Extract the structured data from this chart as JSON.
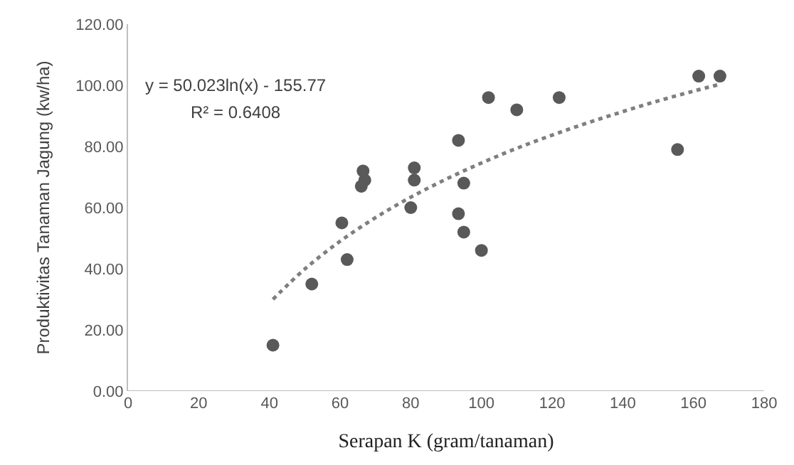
{
  "chart_data": {
    "type": "scatter",
    "xlabel": "Serapan K (gram/tanaman)",
    "ylabel": "Produktivitas Tanaman Jagung (kw/ha)",
    "xlim": [
      0,
      180
    ],
    "xticks": [
      0,
      20,
      40,
      60,
      80,
      100,
      120,
      140,
      160,
      180
    ],
    "ylim": [
      0,
      120
    ],
    "yticks": [
      {
        "value": 0,
        "label": "0.00"
      },
      {
        "value": 20,
        "label": "20.00"
      },
      {
        "value": 40,
        "label": "40.00"
      },
      {
        "value": 60,
        "label": "60.00"
      },
      {
        "value": 80,
        "label": "80.00"
      },
      {
        "value": 100,
        "label": "100.00"
      },
      {
        "value": 120,
        "label": "120.00"
      }
    ],
    "annotations": [
      "y = 50.023ln(x) - 155.77",
      "R² = 0.6408"
    ],
    "series": [
      {
        "color": "#595959",
        "marker": "circle",
        "x": [
          41,
          52,
          60.5,
          62,
          66.5,
          67,
          66,
          81,
          81,
          80,
          102,
          110,
          122,
          93.5,
          95,
          93.5,
          95,
          100,
          155.5,
          161.5,
          167.5
        ],
        "values": [
          15,
          35,
          55,
          43,
          72,
          69,
          67,
          73,
          69,
          60,
          96,
          92,
          96,
          82,
          68,
          58,
          52,
          46,
          79,
          103,
          103
        ]
      },
      {
        "type": "line",
        "color": "#7f7f7f",
        "marker": "none",
        "line_style": "dotted",
        "x": [
          41,
          50,
          60,
          70,
          80,
          90,
          100,
          110,
          120,
          130,
          140,
          150,
          160,
          167
        ],
        "values": [
          30.0,
          39.9,
          49.0,
          56.7,
          63.4,
          69.3,
          74.6,
          79.4,
          83.7,
          87.7,
          91.4,
          94.9,
          98.1,
          100.2
        ]
      }
    ]
  }
}
